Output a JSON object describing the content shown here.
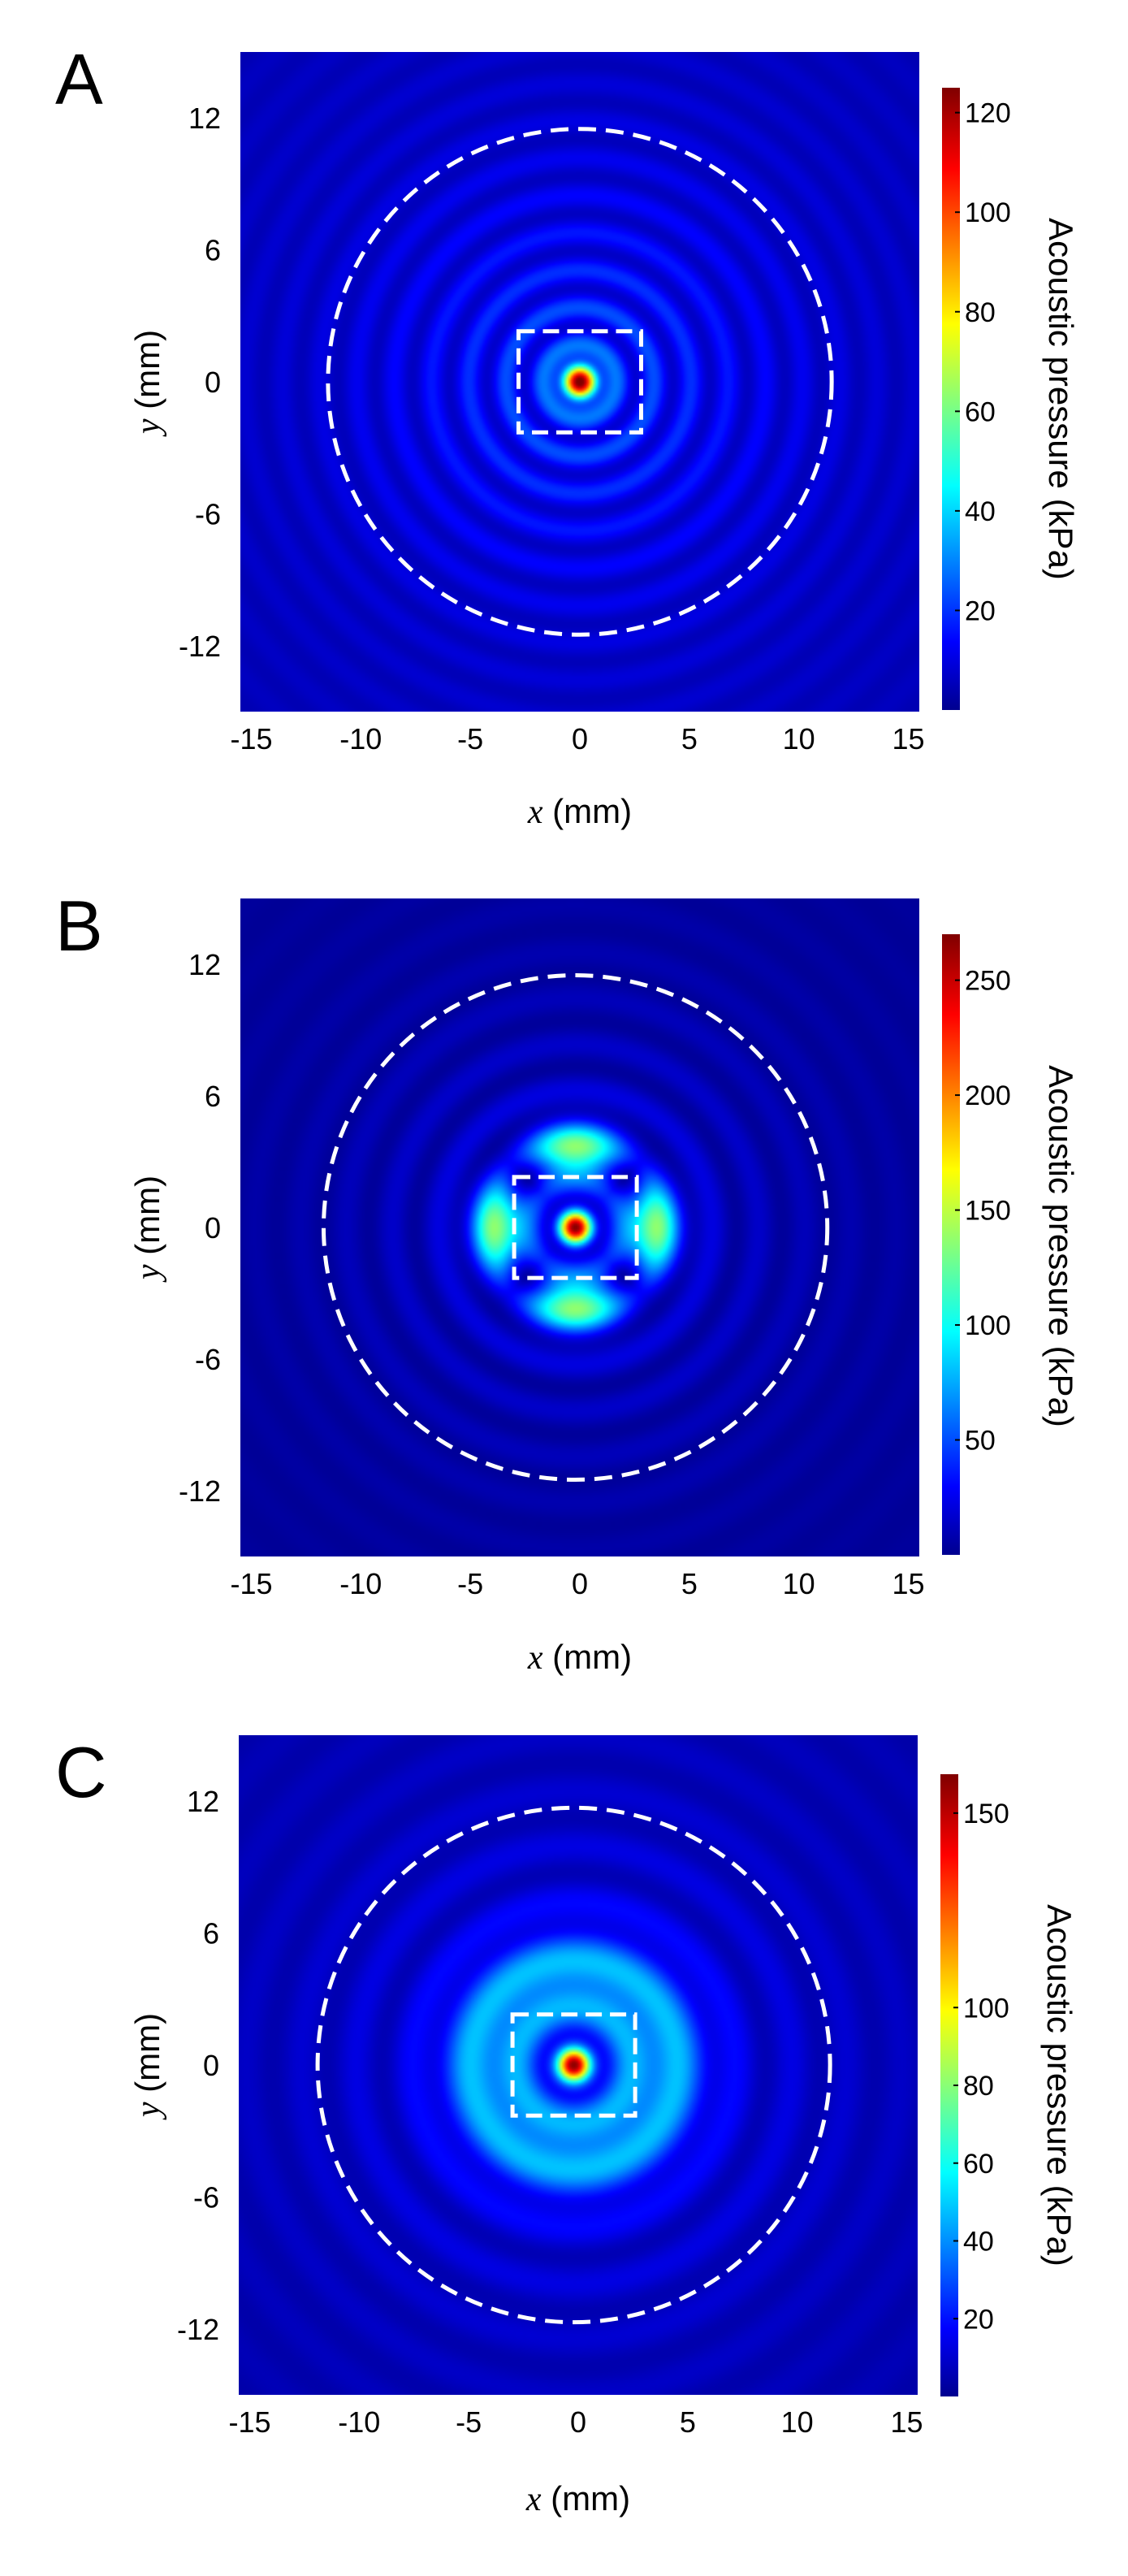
{
  "chart_data": [
    {
      "type": "heatmap",
      "panel_label": "A",
      "xlabel_var": "x",
      "xlabel_unit": " (mm)",
      "ylabel_var": "y",
      "ylabel_unit": " (mm)",
      "xlim": [
        -15.5,
        15.5
      ],
      "ylim": [
        -15,
        15
      ],
      "xticks": [
        -15,
        -10,
        -5,
        0,
        5,
        10,
        15
      ],
      "xtick_labels": [
        "-15",
        "-10",
        "-5",
        "0",
        "5",
        "10",
        "15"
      ],
      "yticks": [
        12,
        6,
        0,
        -6,
        -12
      ],
      "ytick_labels": [
        "12",
        "6",
        "0",
        "-6",
        "-12"
      ],
      "colorbar": {
        "label": "Acoustic pressure (kPa)",
        "min": 0,
        "max": 125,
        "ticks": [
          20,
          40,
          60,
          80,
          100,
          120
        ],
        "tick_labels": [
          "20",
          "40",
          "60",
          "80",
          "100",
          "120"
        ]
      },
      "colormap": "jet",
      "pattern": {
        "peak_kPa": 120,
        "center": [
          0,
          0
        ],
        "ring_period_mm": 1.7,
        "ring_mean_kPa": 18,
        "ring_amp_kPa": 12,
        "ring_decay_mm": 7.5,
        "lobes_kPa": 0,
        "lobe_radius_mm": 3.5,
        "halo_kPa": 0
      },
      "annotations": {
        "dashed_circle": {
          "center": [
            0,
            0
          ],
          "radius_mm": 11.5,
          "color": "#ffffff"
        },
        "dashed_box": {
          "x": [
            -2.8,
            2.8
          ],
          "y": [
            -2.3,
            2.3
          ],
          "color": "#ffffff"
        }
      }
    },
    {
      "type": "heatmap",
      "panel_label": "B",
      "xlabel_var": "x",
      "xlabel_unit": " (mm)",
      "ylabel_var": "y",
      "ylabel_unit": " (mm)",
      "xlim": [
        -15.5,
        15.5
      ],
      "ylim": [
        -15,
        15
      ],
      "xticks": [
        -15,
        -10,
        -5,
        0,
        5,
        10,
        15
      ],
      "xtick_labels": [
        "-15",
        "-10",
        "-5",
        "0",
        "5",
        "10",
        "15"
      ],
      "yticks": [
        12,
        6,
        0,
        -6,
        -12
      ],
      "ytick_labels": [
        "12",
        "6",
        "0",
        "-6",
        "-12"
      ],
      "colorbar": {
        "label": "Acoustic pressure (kPa)",
        "min": 0,
        "max": 270,
        "ticks": [
          50,
          100,
          150,
          200,
          250
        ],
        "tick_labels": [
          "50",
          "100",
          "150",
          "200",
          "250"
        ]
      },
      "colormap": "jet",
      "pattern": {
        "peak_kPa": 260,
        "center": [
          -0.2,
          0
        ],
        "ring_period_mm": 2.1,
        "ring_mean_kPa": 30,
        "ring_amp_kPa": 24,
        "ring_decay_mm": 6.0,
        "lobes_kPa": 120,
        "lobe_radius_mm": 3.5,
        "halo_kPa": 0
      },
      "annotations": {
        "dashed_circle": {
          "center": [
            -0.2,
            0
          ],
          "radius_mm": 11.5,
          "color": "#ffffff"
        },
        "dashed_box": {
          "x": [
            -3,
            2.6
          ],
          "y": [
            -2.3,
            2.3
          ],
          "color": "#ffffff"
        }
      }
    },
    {
      "type": "heatmap",
      "panel_label": "C",
      "xlabel_var": "x",
      "xlabel_unit": " (mm)",
      "ylabel_var": "y",
      "ylabel_unit": " (mm)",
      "xlim": [
        -15.5,
        15.5
      ],
      "ylim": [
        -15,
        15
      ],
      "xticks": [
        -15,
        -10,
        -5,
        0,
        5,
        10,
        15
      ],
      "xtick_labels": [
        "-15",
        "-10",
        "-5",
        "0",
        "5",
        "10",
        "15"
      ],
      "yticks": [
        12,
        6,
        0,
        -6,
        -12
      ],
      "ytick_labels": [
        "12",
        "6",
        "0",
        "-6",
        "-12"
      ],
      "colorbar": {
        "label": "Acoustic pressure (kPa)",
        "min": 0,
        "max": 160,
        "ticks": [
          20,
          40,
          60,
          80,
          100,
          150
        ],
        "tick_labels": [
          "20",
          "40",
          "60",
          "80",
          "100",
          "150"
        ]
      },
      "colormap": "jet",
      "pattern": {
        "peak_kPa": 150,
        "center": [
          -0.2,
          0
        ],
        "ring_period_mm": 2.5,
        "ring_mean_kPa": 20,
        "ring_amp_kPa": 13,
        "ring_decay_mm": 8.0,
        "lobes_kPa": 0,
        "lobe_radius_mm": 3.5,
        "halo_kPa": 32
      },
      "annotations": {
        "dashed_circle": {
          "center": [
            -0.2,
            0
          ],
          "radius_mm": 11.7,
          "color": "#ffffff"
        },
        "dashed_box": {
          "x": [
            -3,
            2.6
          ],
          "y": [
            -2.3,
            2.3
          ],
          "color": "#ffffff"
        }
      }
    }
  ]
}
